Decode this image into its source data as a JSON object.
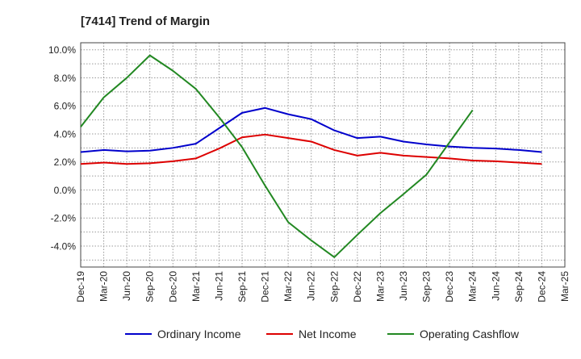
{
  "chart_data": {
    "type": "line",
    "title": "[7414]  Trend of Margin",
    "categories": [
      "Dec-19",
      "Mar-20",
      "Jun-20",
      "Sep-20",
      "Dec-20",
      "Mar-21",
      "Jun-21",
      "Sep-21",
      "Dec-21",
      "Mar-22",
      "Jun-22",
      "Sep-22",
      "Dec-22",
      "Mar-23",
      "Jun-23",
      "Sep-23",
      "Dec-23",
      "Mar-24",
      "Jun-24",
      "Sep-24",
      "Dec-24",
      "Mar-25"
    ],
    "y_ticks": [
      "10.0%",
      "8.0%",
      "6.0%",
      "4.0%",
      "2.0%",
      "0.0%",
      "-2.0%",
      "-4.0%"
    ],
    "y_tick_values": [
      10,
      8,
      6,
      4,
      2,
      0,
      -2,
      -4
    ],
    "ylim": [
      -5.5,
      10.5
    ],
    "grid": true,
    "legend_position": "bottom",
    "series": [
      {
        "name": "Ordinary Income",
        "color": "#0000cc",
        "values": [
          2.7,
          2.85,
          2.75,
          2.8,
          3.0,
          3.3,
          4.4,
          5.5,
          5.85,
          5.4,
          5.05,
          4.25,
          3.7,
          3.8,
          3.45,
          3.25,
          3.1,
          3.0,
          2.95,
          2.85,
          2.7,
          null
        ]
      },
      {
        "name": "Net Income",
        "color": "#dd0000",
        "values": [
          1.85,
          1.95,
          1.85,
          1.9,
          2.05,
          2.25,
          2.95,
          3.75,
          3.95,
          3.7,
          3.45,
          2.85,
          2.45,
          2.65,
          2.45,
          2.35,
          2.25,
          2.1,
          2.05,
          1.95,
          1.85,
          null
        ]
      },
      {
        "name": "Operating Cashflow",
        "color": "#228822",
        "values": [
          4.5,
          6.6,
          8.0,
          9.6,
          8.5,
          7.2,
          5.2,
          3.05,
          0.3,
          -2.3,
          -3.6,
          -4.8,
          -3.2,
          -1.65,
          -0.3,
          1.1,
          3.4,
          5.7,
          null,
          null,
          null,
          null
        ]
      }
    ]
  }
}
